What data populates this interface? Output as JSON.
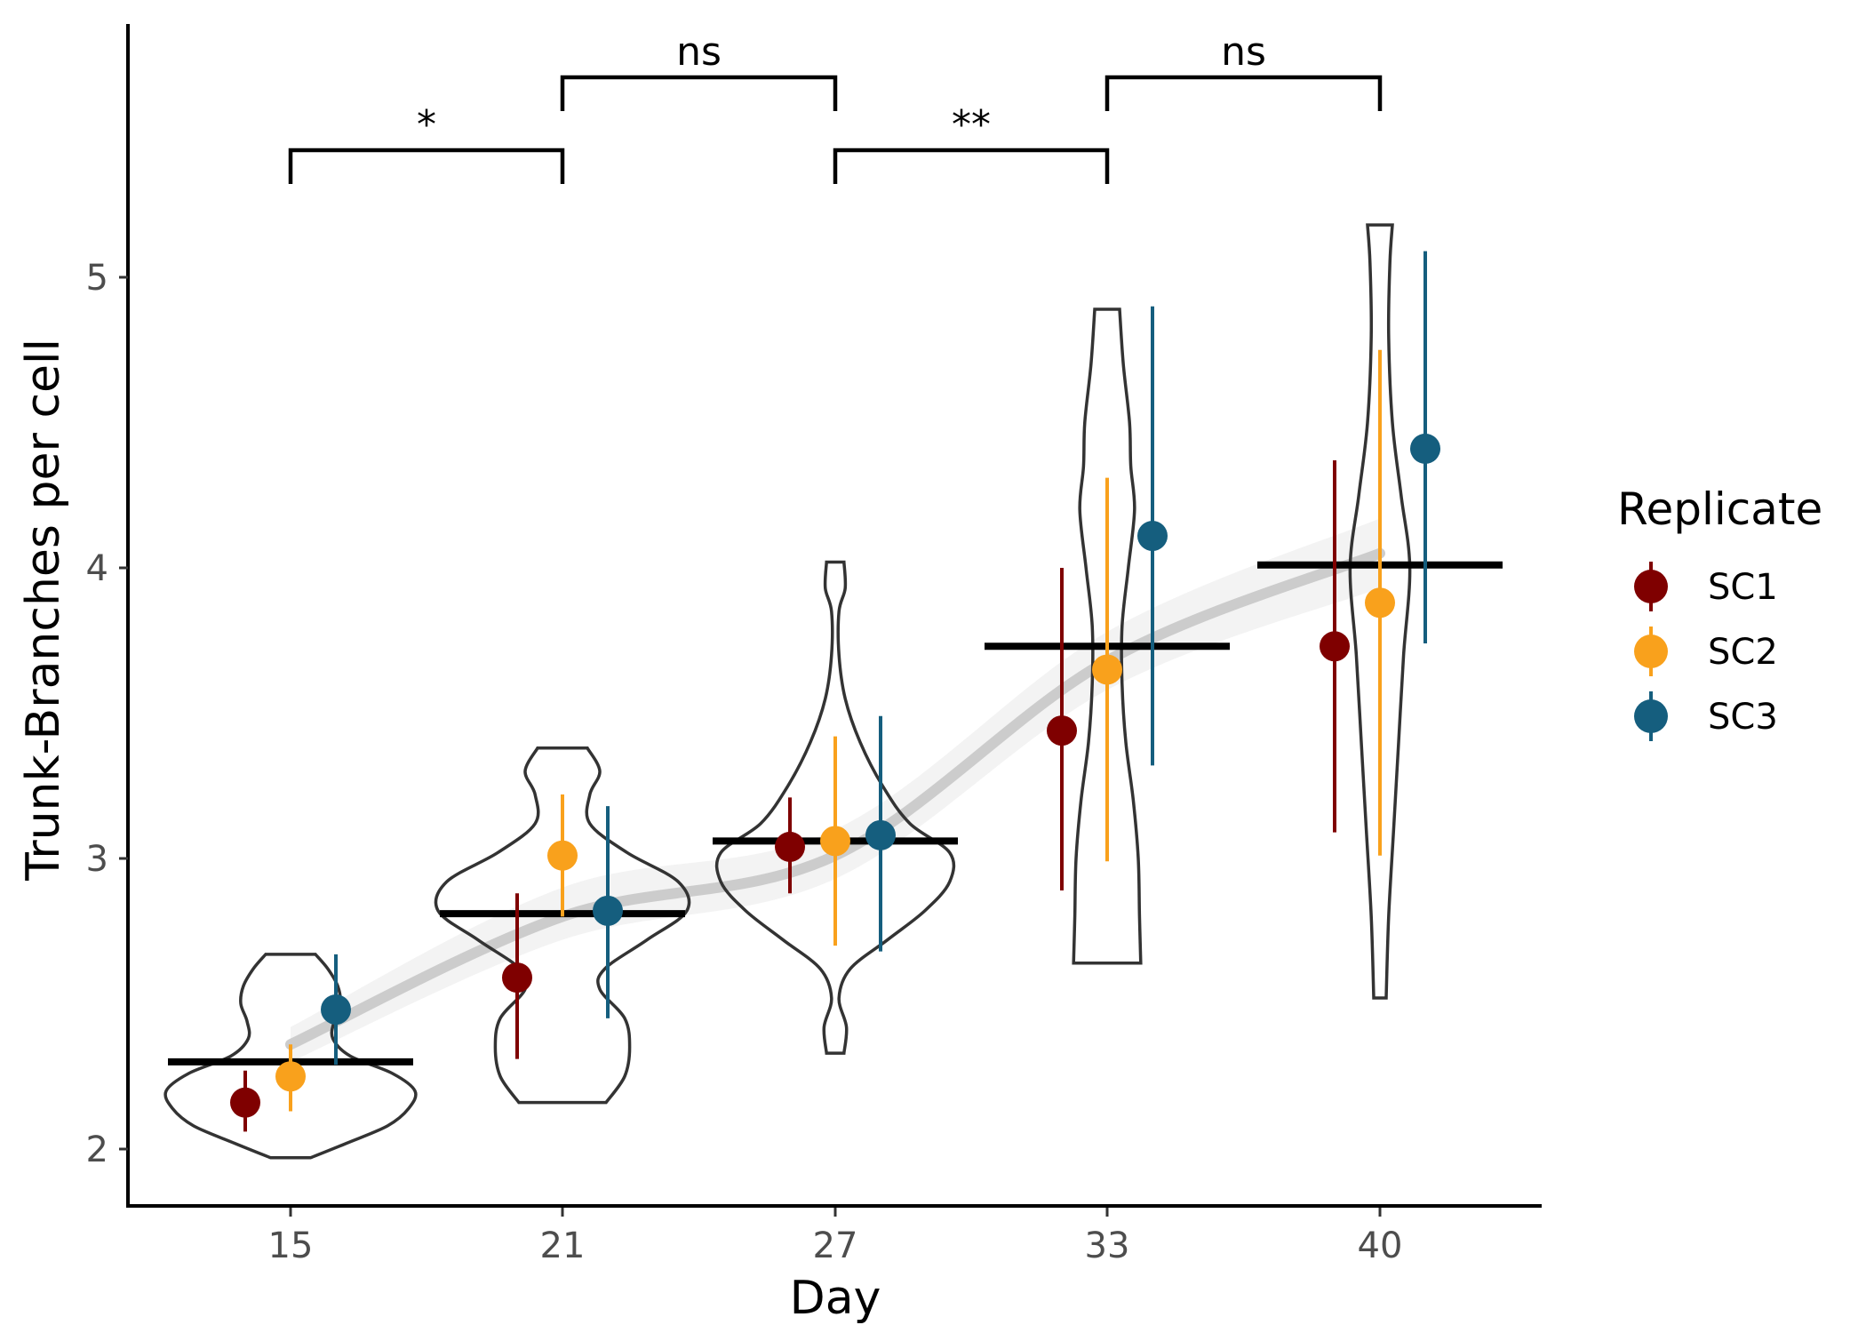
{
  "chart_data": {
    "type": "scatter",
    "title": "",
    "xlabel": "Day",
    "ylabel": "Trunk-Branches per cell",
    "categories": [
      "15",
      "21",
      "27",
      "33",
      "40"
    ],
    "yticks": [
      "2",
      "3",
      "4",
      "5"
    ],
    "ylim": [
      1.8,
      5.9
    ],
    "grid": false,
    "legend": {
      "title": "Replicate",
      "position": "right"
    },
    "series": [
      {
        "name": "SC1",
        "color": "#7f0000",
        "points": [
          {
            "x": "15",
            "y": 2.16,
            "low": 2.06,
            "high": 2.27
          },
          {
            "x": "21",
            "y": 2.59,
            "low": 2.31,
            "high": 2.88
          },
          {
            "x": "27",
            "y": 3.04,
            "low": 2.88,
            "high": 3.21
          },
          {
            "x": "33",
            "y": 3.44,
            "low": 2.89,
            "high": 4.0
          },
          {
            "x": "40",
            "y": 3.73,
            "low": 3.09,
            "high": 4.37
          }
        ]
      },
      {
        "name": "SC2",
        "color": "#f9a11c",
        "points": [
          {
            "x": "15",
            "y": 2.25,
            "low": 2.13,
            "high": 2.36
          },
          {
            "x": "21",
            "y": 3.01,
            "low": 2.8,
            "high": 3.22
          },
          {
            "x": "27",
            "y": 3.06,
            "low": 2.7,
            "high": 3.42
          },
          {
            "x": "33",
            "y": 3.65,
            "low": 2.99,
            "high": 4.31
          },
          {
            "x": "40",
            "y": 3.88,
            "low": 3.01,
            "high": 4.75
          }
        ]
      },
      {
        "name": "SC3",
        "color": "#155e7e",
        "points": [
          {
            "x": "15",
            "y": 2.48,
            "low": 2.29,
            "high": 2.67
          },
          {
            "x": "21",
            "y": 2.82,
            "low": 2.45,
            "high": 3.18
          },
          {
            "x": "27",
            "y": 3.08,
            "low": 2.68,
            "high": 3.49
          },
          {
            "x": "33",
            "y": 4.11,
            "low": 3.32,
            "high": 4.9
          },
          {
            "x": "40",
            "y": 4.41,
            "low": 3.74,
            "high": 5.09
          }
        ]
      }
    ],
    "means": [
      {
        "x": "15",
        "y": 2.3
      },
      {
        "x": "21",
        "y": 2.81
      },
      {
        "x": "27",
        "y": 3.06
      },
      {
        "x": "33",
        "y": 3.73
      },
      {
        "x": "40",
        "y": 4.01
      }
    ],
    "trend": {
      "color": "#cccccc",
      "band_color": "#eeeeee",
      "points": [
        {
          "x": "15",
          "y": 2.36,
          "low": 2.3,
          "high": 2.42
        },
        {
          "x": "21",
          "y": 2.8,
          "low": 2.72,
          "high": 2.9
        },
        {
          "x": "27",
          "y": 3.01,
          "low": 2.93,
          "high": 3.1
        },
        {
          "x": "33",
          "y": 3.68,
          "low": 3.58,
          "high": 3.78
        },
        {
          "x": "40",
          "y": 4.05,
          "low": 3.93,
          "high": 4.17
        }
      ]
    },
    "violins": [
      {
        "x": "15",
        "min": 1.97,
        "max": 2.67,
        "profile": [
          [
            1.97,
            0.16
          ],
          [
            2.02,
            0.45
          ],
          [
            2.08,
            0.78
          ],
          [
            2.14,
            0.95
          ],
          [
            2.2,
            1.0
          ],
          [
            2.26,
            0.82
          ],
          [
            2.32,
            0.48
          ],
          [
            2.38,
            0.34
          ],
          [
            2.44,
            0.35
          ],
          [
            2.5,
            0.4
          ],
          [
            2.56,
            0.38
          ],
          [
            2.62,
            0.3
          ],
          [
            2.67,
            0.2
          ]
        ]
      },
      {
        "x": "21",
        "min": 2.16,
        "max": 3.38,
        "profile": [
          [
            2.16,
            0.35
          ],
          [
            2.25,
            0.5
          ],
          [
            2.35,
            0.54
          ],
          [
            2.45,
            0.5
          ],
          [
            2.55,
            0.3
          ],
          [
            2.62,
            0.34
          ],
          [
            2.72,
            0.68
          ],
          [
            2.82,
            1.0
          ],
          [
            2.92,
            0.93
          ],
          [
            3.02,
            0.52
          ],
          [
            3.12,
            0.22
          ],
          [
            3.22,
            0.22
          ],
          [
            3.3,
            0.3
          ],
          [
            3.38,
            0.2
          ]
        ]
      },
      {
        "x": "27",
        "min": 2.33,
        "max": 4.02,
        "profile": [
          [
            2.33,
            0.07
          ],
          [
            2.42,
            0.09
          ],
          [
            2.52,
            0.03
          ],
          [
            2.62,
            0.12
          ],
          [
            2.72,
            0.42
          ],
          [
            2.82,
            0.72
          ],
          [
            2.92,
            0.92
          ],
          [
            3.02,
            0.92
          ],
          [
            3.12,
            0.6
          ],
          [
            3.25,
            0.38
          ],
          [
            3.4,
            0.2
          ],
          [
            3.55,
            0.08
          ],
          [
            3.7,
            0.03
          ],
          [
            3.85,
            0.03
          ],
          [
            3.93,
            0.08
          ],
          [
            4.02,
            0.07
          ]
        ]
      },
      {
        "x": "33",
        "min": 2.64,
        "max": 4.89,
        "profile": [
          [
            2.64,
            0.27
          ],
          [
            2.8,
            0.26
          ],
          [
            3.0,
            0.25
          ],
          [
            3.2,
            0.21
          ],
          [
            3.4,
            0.15
          ],
          [
            3.6,
            0.12
          ],
          [
            3.8,
            0.12
          ],
          [
            4.0,
            0.17
          ],
          [
            4.2,
            0.22
          ],
          [
            4.35,
            0.19
          ],
          [
            4.5,
            0.18
          ],
          [
            4.7,
            0.13
          ],
          [
            4.89,
            0.1
          ]
        ]
      },
      {
        "x": "40",
        "min": 2.52,
        "max": 5.18,
        "profile": [
          [
            2.52,
            0.05
          ],
          [
            2.8,
            0.07
          ],
          [
            3.1,
            0.11
          ],
          [
            3.4,
            0.15
          ],
          [
            3.7,
            0.19
          ],
          [
            4.0,
            0.24
          ],
          [
            4.25,
            0.17
          ],
          [
            4.5,
            0.1
          ],
          [
            4.8,
            0.07
          ],
          [
            5.05,
            0.08
          ],
          [
            5.18,
            0.1
          ]
        ]
      }
    ],
    "significance": [
      {
        "from": "15",
        "to": "21",
        "label": "*",
        "level": 1
      },
      {
        "from": "21",
        "to": "27",
        "label": "ns",
        "level": 2
      },
      {
        "from": "27",
        "to": "33",
        "label": "**",
        "level": 1
      },
      {
        "from": "33",
        "to": "40",
        "label": "ns",
        "level": 2
      }
    ]
  }
}
